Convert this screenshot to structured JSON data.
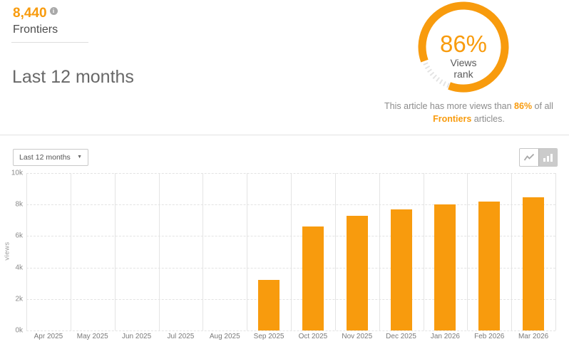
{
  "accent_color": "#F89B0D",
  "metric": {
    "value": "8,440",
    "label": "Frontiers"
  },
  "heading": "Last 12 months",
  "rank": {
    "percent": 86,
    "percent_label": "86%",
    "center_line1": "Views",
    "center_line2": "rank",
    "caption": {
      "part1": "This article has more views than ",
      "percent": "86%",
      "part2": " of all ",
      "brand": "Frontiers",
      "part3": " articles."
    }
  },
  "controls": {
    "range_select_value": "Last 12 months",
    "chart_toggle_selected": "bar"
  },
  "chart_data": {
    "type": "bar",
    "title": "",
    "xlabel": "",
    "ylabel": "views",
    "categories": [
      "Apr 2025",
      "May 2025",
      "Jun 2025",
      "Jul 2025",
      "Aug 2025",
      "Sep 2025",
      "Oct 2025",
      "Nov 2025",
      "Dec 2025",
      "Jan 2026",
      "Feb 2026",
      "Mar 2026"
    ],
    "values": [
      0,
      0,
      0,
      0,
      0,
      3200,
      6600,
      7300,
      7700,
      8000,
      8200,
      8440
    ],
    "ylim": [
      0,
      10000
    ],
    "y_tick_labels": [
      "10k",
      "8k",
      "6k",
      "4k",
      "2k",
      "0k"
    ],
    "y_tick_values": [
      10000,
      8000,
      6000,
      4000,
      2000,
      0
    ],
    "bar_color": "#F89B0D",
    "grid": true,
    "legend": "none"
  }
}
